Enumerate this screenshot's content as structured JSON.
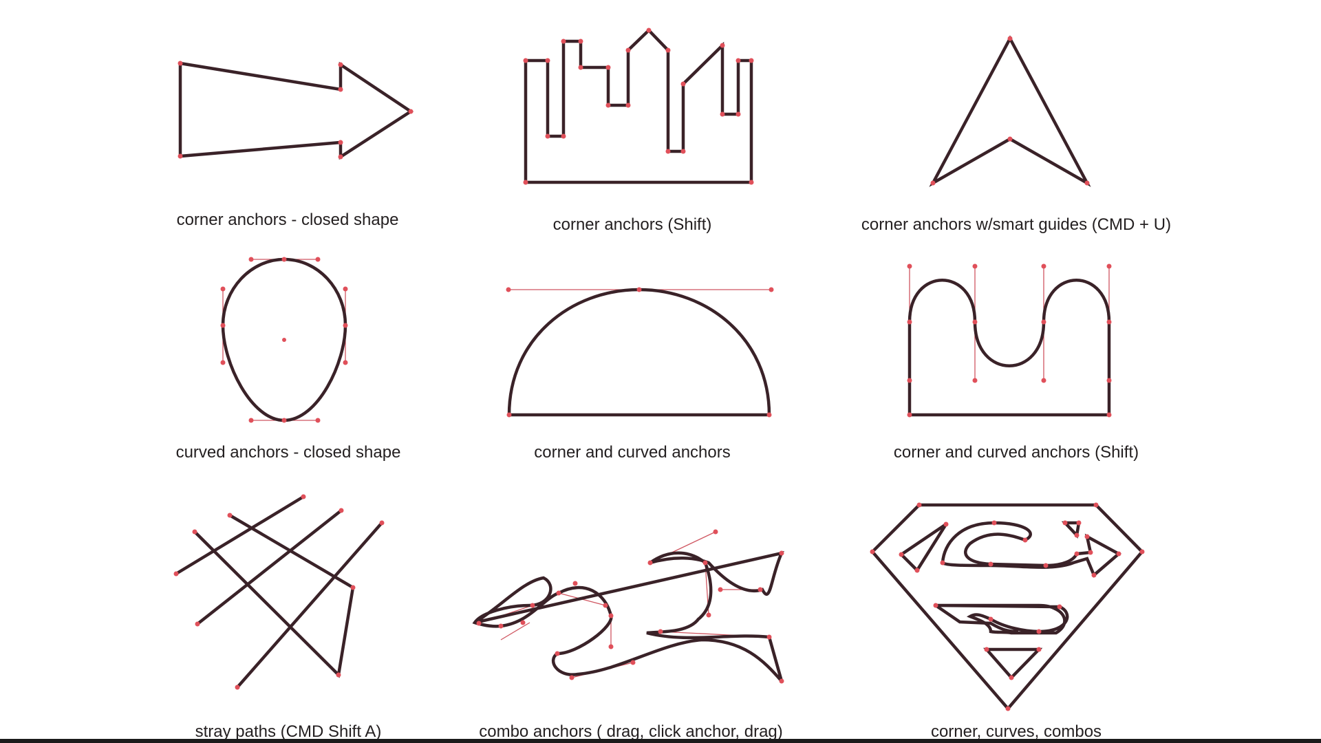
{
  "captions": {
    "c1": "corner anchors - closed shape",
    "c2": "corner anchors (Shift)",
    "c3": "corner anchors w/smart guides (CMD + U)",
    "c4": "curved anchors - closed shape",
    "c5": "corner and curved anchors",
    "c6": "corner and curved anchors (Shift)",
    "c7": "stray paths (CMD Shift A)",
    "c8": "combo anchors ( drag, click anchor, drag)",
    "c9": "corner, curves, combos"
  },
  "colors": {
    "path_stroke": "#3a2228",
    "anchor_point": "#e0505a",
    "handle_line": "#cf5560",
    "background": "#ffffff"
  }
}
